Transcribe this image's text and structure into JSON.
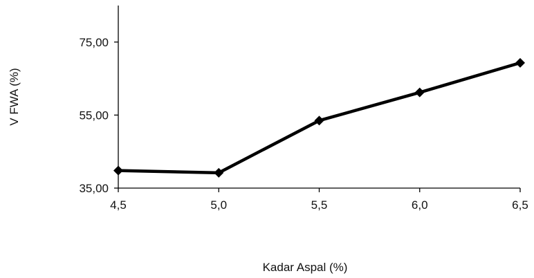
{
  "chart_data": {
    "type": "line",
    "title": "",
    "xlabel": "Kadar Aspal (%)",
    "ylabel": "V FWA  (%)",
    "x": [
      4.5,
      5.0,
      5.5,
      6.0,
      6.5
    ],
    "x_tick_labels": [
      "4,5",
      "5,0",
      "5,5",
      "6,0",
      "6,5"
    ],
    "y_ticks": [
      35,
      55,
      75
    ],
    "y_tick_labels": [
      "35,00",
      "55,00",
      "75,00"
    ],
    "ylim": [
      35,
      85
    ],
    "grid": false,
    "legend": "none",
    "series": [
      {
        "values": [
          39.8,
          39.2,
          53.5,
          61.2,
          69.3
        ],
        "color": "#000000",
        "marker": "diamond"
      }
    ]
  }
}
